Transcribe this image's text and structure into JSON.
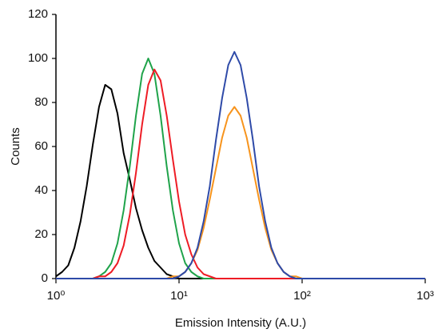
{
  "chart_data": {
    "type": "line",
    "x_label": "Emission Intensity (A.U.)",
    "y_label": "Counts",
    "xscale": "log",
    "xlim": [
      1,
      1000
    ],
    "ylim": [
      0,
      120
    ],
    "xticks": [
      {
        "value": 1,
        "label": "10⁰"
      },
      {
        "value": 10,
        "label": "10¹"
      },
      {
        "value": 100,
        "label": "10²"
      },
      {
        "value": 1000,
        "label": "10³"
      }
    ],
    "yticks": [
      0,
      20,
      40,
      60,
      80,
      100,
      120
    ],
    "x": [
      1,
      1.122,
      1.259,
      1.413,
      1.585,
      1.778,
      1.995,
      2.239,
      2.512,
      2.818,
      3.162,
      3.548,
      3.981,
      4.467,
      5.012,
      5.623,
      6.31,
      7.079,
      7.943,
      8.913,
      10,
      11.22,
      12.59,
      14.13,
      15.85,
      17.78,
      19.95,
      22.39,
      25.12,
      28.18,
      31.62,
      35.48,
      39.81,
      44.67,
      50.12,
      56.23,
      63.1,
      70.79,
      79.43,
      89.13,
      100,
      112.2,
      125.9,
      141.3,
      158.5,
      177.8,
      199.5,
      223.9,
      251.2,
      281.8,
      316.2,
      354.8,
      398.1,
      446.7,
      501.2,
      562.3,
      631,
      707.9,
      794.3,
      891.3,
      1000
    ],
    "series": [
      {
        "color": "#000000",
        "values": [
          1,
          3,
          6,
          14,
          26,
          42,
          61,
          78,
          88,
          86,
          75,
          57,
          45,
          32,
          22,
          14,
          8,
          5,
          2,
          1,
          0,
          0,
          0,
          0,
          0,
          0,
          0,
          0,
          0,
          0,
          0,
          0,
          0,
          0,
          0,
          0,
          0,
          0,
          0,
          0,
          0,
          0,
          0,
          0,
          0,
          0,
          0,
          0,
          0,
          0,
          0,
          0,
          0,
          0,
          0,
          0,
          0,
          0,
          0,
          0,
          0
        ]
      },
      {
        "color": "#1fa34a",
        "values": [
          0,
          0,
          0,
          0,
          0,
          0,
          0,
          1,
          3,
          7,
          16,
          31,
          51,
          74,
          93,
          100,
          93,
          74,
          51,
          31,
          16,
          7,
          3,
          1,
          0,
          0,
          0,
          0,
          0,
          0,
          0,
          0,
          0,
          0,
          0,
          0,
          0,
          0,
          0,
          0,
          0,
          0,
          0,
          0,
          0,
          0,
          0,
          0,
          0,
          0,
          0,
          0,
          0,
          0,
          0,
          0,
          0,
          0,
          0,
          0,
          0
        ]
      },
      {
        "color": "#ee1c25",
        "values": [
          0,
          0,
          0,
          0,
          0,
          0,
          0,
          1,
          1,
          3,
          7,
          15,
          29,
          48,
          70,
          88,
          95,
          90,
          74,
          54,
          35,
          20,
          11,
          5,
          2,
          1,
          0,
          0,
          0,
          0,
          0,
          0,
          0,
          0,
          0,
          0,
          0,
          0,
          0,
          0,
          0,
          0,
          0,
          0,
          0,
          0,
          0,
          0,
          0,
          0,
          0,
          0,
          0,
          0,
          0,
          0,
          0,
          0,
          0,
          0,
          0
        ]
      },
      {
        "color": "#f7941d",
        "values": [
          0,
          0,
          0,
          0,
          0,
          0,
          0,
          0,
          0,
          0,
          0,
          0,
          0,
          0,
          0,
          0,
          0,
          0,
          0,
          1,
          1,
          3,
          7,
          13,
          23,
          36,
          50,
          64,
          74,
          78,
          74,
          64,
          50,
          36,
          23,
          13,
          7,
          3,
          1,
          1,
          0,
          0,
          0,
          0,
          0,
          0,
          0,
          0,
          0,
          0,
          0,
          0,
          0,
          0,
          0,
          0,
          0,
          0,
          0,
          0,
          0
        ]
      },
      {
        "color": "#2e4aa8",
        "values": [
          0,
          0,
          0,
          0,
          0,
          0,
          0,
          0,
          0,
          0,
          0,
          0,
          0,
          0,
          0,
          0,
          0,
          0,
          0,
          0,
          1,
          3,
          7,
          14,
          26,
          42,
          63,
          82,
          97,
          103,
          97,
          82,
          63,
          42,
          26,
          14,
          7,
          3,
          1,
          0,
          0,
          0,
          0,
          0,
          0,
          0,
          0,
          0,
          0,
          0,
          0,
          0,
          0,
          0,
          0,
          0,
          0,
          0,
          0,
          0,
          0
        ]
      }
    ]
  }
}
